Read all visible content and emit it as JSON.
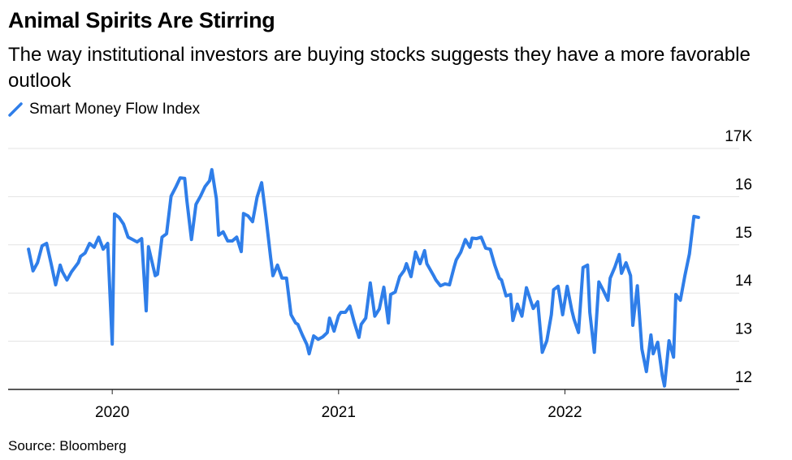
{
  "chart_data": {
    "type": "line",
    "title": "Animal Spirits Are Stirring",
    "subtitle": "The way institutional investors are buying stocks suggests they have a more favorable outlook",
    "source": "Source: Bloomberg",
    "x": [
      2019.63,
      2019.65,
      2019.67,
      2019.69,
      2019.71,
      2019.73,
      2019.75,
      2019.77,
      2019.78,
      2019.8,
      2019.82,
      2019.85,
      2019.86,
      2019.88,
      2019.9,
      2019.92,
      2019.94,
      2019.96,
      2019.98,
      2020.0,
      2020.01,
      2020.03,
      2020.05,
      2020.07,
      2020.09,
      2020.11,
      2020.13,
      2020.15,
      2020.16,
      2020.19,
      2020.2,
      2020.22,
      2020.24,
      2020.26,
      2020.28,
      2020.3,
      2020.32,
      2020.33,
      2020.35,
      2020.37,
      2020.39,
      2020.41,
      2020.43,
      2020.44,
      2020.46,
      2020.47,
      2020.49,
      2020.51,
      2020.53,
      2020.55,
      2020.57,
      2020.58,
      2020.6,
      2020.62,
      2020.64,
      2020.66,
      2020.68,
      2020.7,
      2020.71,
      2020.73,
      2020.75,
      2020.77,
      2020.79,
      2020.81,
      2020.82,
      2020.84,
      2020.86,
      2020.87,
      2020.89,
      2020.91,
      2020.93,
      2020.95,
      2020.96,
      2020.98,
      2021.0,
      2021.01,
      2021.03,
      2021.05,
      2021.07,
      2021.09,
      2021.1,
      2021.12,
      2021.14,
      2021.16,
      2021.18,
      2021.2,
      2021.22,
      2021.23,
      2021.25,
      2021.27,
      2021.29,
      2021.3,
      2021.32,
      2021.34,
      2021.36,
      2021.38,
      2021.39,
      2021.42,
      2021.43,
      2021.45,
      2021.47,
      2021.49,
      2021.51,
      2021.52,
      2021.54,
      2021.56,
      2021.58,
      2021.59,
      2021.61,
      2021.63,
      2021.65,
      2021.67,
      2021.69,
      2021.71,
      2021.72,
      2021.74,
      2021.76,
      2021.77,
      2021.79,
      2021.81,
      2021.83,
      2021.85,
      2021.86,
      2021.88,
      2021.9,
      2021.92,
      2021.94,
      2021.95,
      2021.97,
      2021.99,
      2022.01,
      2022.03,
      2022.04,
      2022.06,
      2022.08,
      2022.1,
      2022.11,
      2022.13,
      2022.15,
      2022.17,
      2022.19,
      2022.2,
      2022.22,
      2022.24,
      2022.25,
      2022.27,
      2022.29,
      2022.3,
      2022.32,
      2022.34,
      2022.36,
      2022.38,
      2022.39,
      2022.41,
      2022.43,
      2022.44,
      2022.46,
      2022.48,
      2022.49,
      2022.51,
      2022.53,
      2022.55,
      2022.57,
      2022.59
    ],
    "series": [
      {
        "name": "Smart Money Flow Index",
        "color": "#2f7ee9",
        "values": [
          14.91,
          14.46,
          14.63,
          14.98,
          15.03,
          14.61,
          14.17,
          14.58,
          14.44,
          14.27,
          14.44,
          14.63,
          14.76,
          14.83,
          15.03,
          14.95,
          15.16,
          14.91,
          15.03,
          12.94,
          15.64,
          15.57,
          15.43,
          15.16,
          15.11,
          15.06,
          15.13,
          13.63,
          14.96,
          14.36,
          14.39,
          15.16,
          15.23,
          16.01,
          16.19,
          16.39,
          16.38,
          15.91,
          15.11,
          15.84,
          16.01,
          16.21,
          16.33,
          16.56,
          15.96,
          15.2,
          15.27,
          15.08,
          15.08,
          15.16,
          14.86,
          15.65,
          15.6,
          15.48,
          15.99,
          16.29,
          15.54,
          14.73,
          14.36,
          14.58,
          14.31,
          14.31,
          13.55,
          13.38,
          13.35,
          13.13,
          12.93,
          12.74,
          13.11,
          13.04,
          13.09,
          13.18,
          13.48,
          13.21,
          13.53,
          13.6,
          13.6,
          13.73,
          13.38,
          13.08,
          13.35,
          13.48,
          14.21,
          13.52,
          13.67,
          14.12,
          13.38,
          13.97,
          14.02,
          14.34,
          14.47,
          14.61,
          14.34,
          14.85,
          14.61,
          14.88,
          14.61,
          14.36,
          14.27,
          14.15,
          14.19,
          14.17,
          14.53,
          14.69,
          14.85,
          15.11,
          14.95,
          15.14,
          15.13,
          15.16,
          14.93,
          14.91,
          14.58,
          14.31,
          14.27,
          13.94,
          13.97,
          13.43,
          13.77,
          13.52,
          14.11,
          13.82,
          13.68,
          13.82,
          12.77,
          13.01,
          13.55,
          14.07,
          14.14,
          13.55,
          14.14,
          13.65,
          13.46,
          13.18,
          14.53,
          14.58,
          13.6,
          12.77,
          14.23,
          14.05,
          13.85,
          14.31,
          14.53,
          14.8,
          14.41,
          14.63,
          14.36,
          13.33,
          14.15,
          12.84,
          12.37,
          13.13,
          12.74,
          12.98,
          12.29,
          12.07,
          13.01,
          12.67,
          13.97,
          13.85,
          14.36,
          14.81,
          15.59,
          15.57
        ]
      }
    ],
    "xlim": [
      2019.54,
      2022.77
    ],
    "xticks": [
      2020,
      2021,
      2022
    ],
    "ylim": [
      12,
      17
    ],
    "yticks": [
      12,
      13,
      14,
      15,
      16,
      {
        "value": 17,
        "label": "17K"
      }
    ],
    "grid": true
  }
}
